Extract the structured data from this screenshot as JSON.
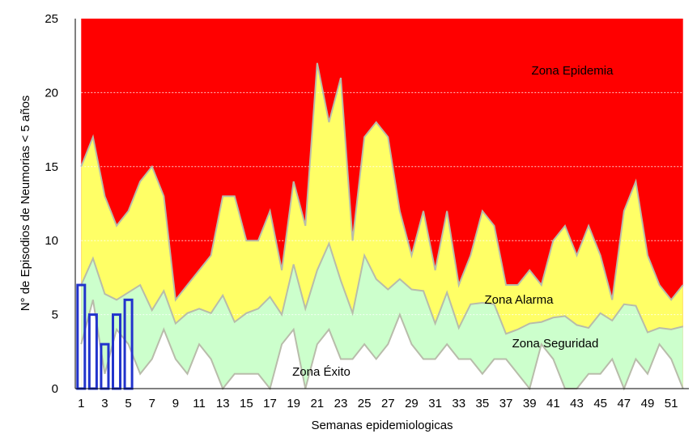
{
  "chart_data": {
    "type": "area",
    "xlabel": "Semanas epidemiologicas",
    "ylabel": "N° de Episodios de Neumorias < 5 años",
    "ylim": [
      0,
      25
    ],
    "yticks": [
      0,
      5,
      10,
      15,
      20,
      25
    ],
    "x": [
      1,
      2,
      3,
      4,
      5,
      6,
      7,
      8,
      9,
      10,
      11,
      12,
      13,
      14,
      15,
      16,
      17,
      18,
      19,
      20,
      21,
      22,
      23,
      24,
      25,
      26,
      27,
      28,
      29,
      30,
      31,
      32,
      33,
      34,
      35,
      36,
      37,
      38,
      39,
      40,
      41,
      42,
      43,
      44,
      45,
      46,
      47,
      48,
      49,
      50,
      51,
      52
    ],
    "xticks": [
      1,
      3,
      5,
      7,
      9,
      11,
      13,
      15,
      17,
      19,
      21,
      23,
      25,
      27,
      29,
      31,
      33,
      35,
      37,
      39,
      41,
      43,
      45,
      47,
      49,
      51
    ],
    "grid": "horizontal",
    "zones": [
      {
        "name": "Zona Epidemia",
        "color": "#ff0000",
        "upper": 25
      },
      {
        "name": "Zona Alarma",
        "color": "#ffff66",
        "upper": [
          15,
          17,
          13,
          11,
          12,
          14,
          15,
          13,
          6,
          7,
          8,
          9,
          13,
          13,
          10,
          10,
          12,
          8,
          14,
          11,
          22,
          18,
          21,
          10,
          17,
          18,
          17,
          12,
          9,
          12,
          8,
          12,
          7,
          9,
          12,
          11,
          7,
          7,
          8,
          7,
          10,
          11,
          9,
          11,
          9,
          6,
          12,
          14,
          9,
          7,
          6,
          7
        ]
      },
      {
        "name": "Zona Seguridad",
        "color": "#ccffcc",
        "upper": [
          7,
          8.8,
          6.4,
          6,
          6.5,
          7,
          5.3,
          6.6,
          4.4,
          5.1,
          5.4,
          5.1,
          6.3,
          4.5,
          5.1,
          5.4,
          6.2,
          5,
          8.4,
          5.4,
          8,
          9.8,
          7.3,
          5.1,
          9,
          7.4,
          6.7,
          7.4,
          6.7,
          6.6,
          4.4,
          6.5,
          4.1,
          5.7,
          5.8,
          5.7,
          3.7,
          4,
          4.4,
          4.5,
          4.8,
          4.9,
          4.3,
          4.1,
          5.1,
          4.6,
          5.7,
          5.6,
          3.8,
          4.1,
          4,
          4.2
        ]
      },
      {
        "name": "Zona Éxito",
        "color": "#ffffff",
        "upper": [
          3,
          6,
          1,
          4,
          3,
          1,
          2,
          4,
          2,
          1,
          3,
          2,
          0,
          1,
          1,
          1,
          0,
          3,
          4,
          0,
          3,
          4,
          2,
          2,
          3,
          2,
          3,
          5,
          3,
          2,
          2,
          3,
          2,
          2,
          1,
          2,
          2,
          1,
          0,
          3,
          2,
          0,
          0,
          1,
          1,
          2,
          0,
          2,
          1,
          3,
          2,
          0
        ]
      }
    ],
    "series": [
      {
        "name": "",
        "type": "bar",
        "color": "#2233cc",
        "x": [
          1,
          2,
          3,
          4,
          5
        ],
        "values": [
          7,
          5,
          3,
          5,
          6
        ]
      }
    ]
  }
}
